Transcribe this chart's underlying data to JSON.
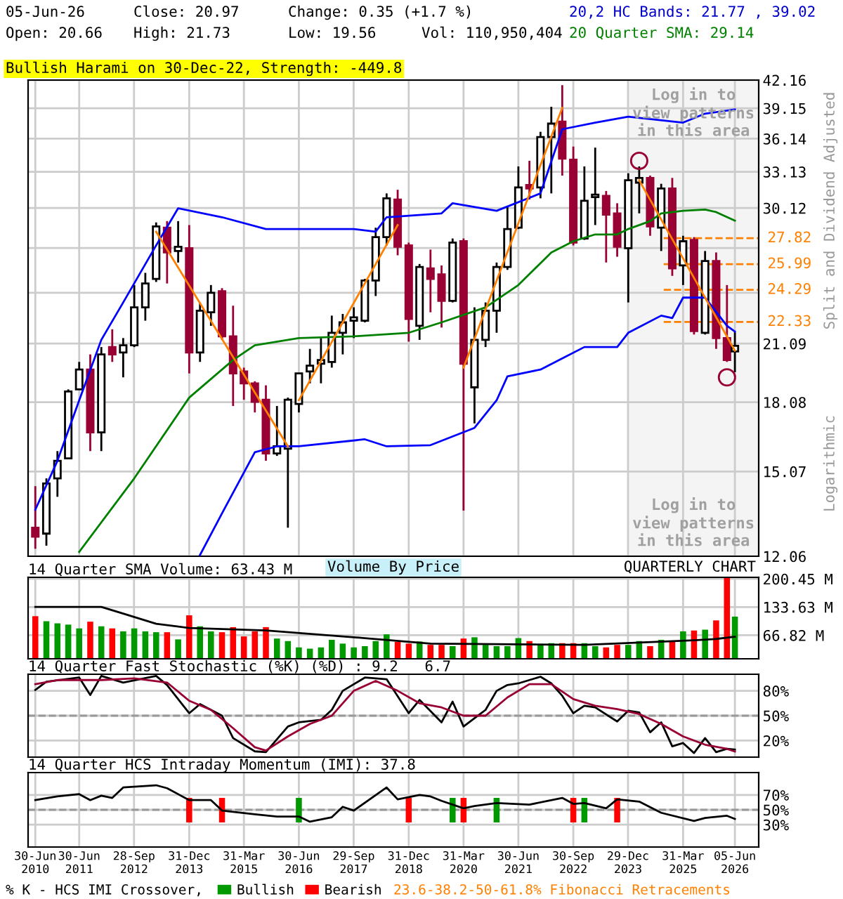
{
  "chart_data": [
    {
      "type": "candlestick",
      "x": [
        "2010-06-30",
        "2010-09-30",
        "2010-12-31",
        "2011-03-31",
        "2011-06-30",
        "2011-09-30",
        "2011-12-31",
        "2012-03-31",
        "2012-06-30",
        "2012-09-30",
        "2012-12-31",
        "2013-03-31",
        "2013-06-30",
        "2013-09-30",
        "2013-12-31",
        "2014-03-31",
        "2014-06-30",
        "2014-09-30",
        "2014-12-31",
        "2015-03-31",
        "2015-06-30",
        "2015-09-30",
        "2015-12-31",
        "2016-03-31",
        "2016-06-30",
        "2016-09-30",
        "2016-12-31",
        "2017-03-31",
        "2017-06-30",
        "2017-09-30",
        "2017-12-31",
        "2018-03-31",
        "2018-06-30",
        "2018-09-30",
        "2018-12-31",
        "2019-03-31",
        "2019-06-30",
        "2019-09-30",
        "2019-12-31",
        "2020-03-31",
        "2020-06-30",
        "2020-09-30",
        "2020-12-31",
        "2021-03-31",
        "2021-06-30",
        "2021-09-30",
        "2021-12-31",
        "2022-03-31",
        "2022-06-30",
        "2022-09-30",
        "2022-12-31",
        "2023-03-31",
        "2023-06-30",
        "2023-09-30",
        "2023-12-31",
        "2024-03-31",
        "2024-06-30",
        "2024-09-30",
        "2024-12-31",
        "2025-03-31",
        "2025-06-30",
        "2025-09-30",
        "2025-12-31",
        "2026-03-31",
        "2026-06-05"
      ],
      "ohlc": [
        [
          13.0,
          14.5,
          12.3,
          12.7
        ],
        [
          12.8,
          14.8,
          12.4,
          14.6
        ],
        [
          14.8,
          15.9,
          14.1,
          15.5
        ],
        [
          15.6,
          18.7,
          15.6,
          18.6
        ],
        [
          18.7,
          20.1,
          18.7,
          19.7
        ],
        [
          19.7,
          20.5,
          15.9,
          16.7
        ],
        [
          16.7,
          20.9,
          15.9,
          20.5
        ],
        [
          20.9,
          21.9,
          20.1,
          20.5
        ],
        [
          20.6,
          21.4,
          19.3,
          21.0
        ],
        [
          21.0,
          24.6,
          20.9,
          23.2
        ],
        [
          23.2,
          25.4,
          22.4,
          24.7
        ],
        [
          25.0,
          29.0,
          24.8,
          28.7
        ],
        [
          28.6,
          29.1,
          24.7,
          26.8
        ],
        [
          26.9,
          29.1,
          26.1,
          27.2
        ],
        [
          27.1,
          28.8,
          19.5,
          20.6
        ],
        [
          20.6,
          23.5,
          20.1,
          23.0
        ],
        [
          22.9,
          24.6,
          22.1,
          24.1
        ],
        [
          24.2,
          24.4,
          21.3,
          21.5
        ],
        [
          21.5,
          23.3,
          17.9,
          19.5
        ],
        [
          19.6,
          19.8,
          18.2,
          19.0
        ],
        [
          19.0,
          19.1,
          17.6,
          18.1
        ],
        [
          18.2,
          18.9,
          15.5,
          15.8
        ],
        [
          15.8,
          17.9,
          15.7,
          16.1
        ],
        [
          16.0,
          18.3,
          13.0,
          18.2
        ],
        [
          18.0,
          19.5,
          17.6,
          19.5
        ],
        [
          19.6,
          20.8,
          19.0,
          19.9
        ],
        [
          20.0,
          21.4,
          19.0,
          20.2
        ],
        [
          20.1,
          22.7,
          19.8,
          21.7
        ],
        [
          21.7,
          22.8,
          20.5,
          22.3
        ],
        [
          22.4,
          23.2,
          21.4,
          22.6
        ],
        [
          22.4,
          25.0,
          22.3,
          24.9
        ],
        [
          24.9,
          28.6,
          23.9,
          27.9
        ],
        [
          27.9,
          31.3,
          27.3,
          30.9
        ],
        [
          30.8,
          31.6,
          26.6,
          27.2
        ],
        [
          27.3,
          27.5,
          21.2,
          22.5
        ],
        [
          22.1,
          26.0,
          21.3,
          25.8
        ],
        [
          25.7,
          27.0,
          22.9,
          25.0
        ],
        [
          25.3,
          25.9,
          22.0,
          23.6
        ],
        [
          23.6,
          27.8,
          23.5,
          27.5
        ],
        [
          27.6,
          27.8,
          13.6,
          20.0
        ],
        [
          18.8,
          23.2,
          17.1,
          21.3
        ],
        [
          21.3,
          23.5,
          20.9,
          23.0
        ],
        [
          23.0,
          26.1,
          21.7,
          25.8
        ],
        [
          25.8,
          30.2,
          25.6,
          28.5
        ],
        [
          28.6,
          33.6,
          28.5,
          31.8
        ],
        [
          32.0,
          34.1,
          30.8,
          31.7
        ],
        [
          31.8,
          36.8,
          30.9,
          36.3
        ],
        [
          36.3,
          39.3,
          31.3,
          37.6
        ],
        [
          37.8,
          41.6,
          32.8,
          34.3
        ],
        [
          34.2,
          35.4,
          27.3,
          27.5
        ],
        [
          27.8,
          33.6,
          27.7,
          30.7
        ],
        [
          31.0,
          35.3,
          28.8,
          31.2
        ],
        [
          31.1,
          31.5,
          26.1,
          29.6
        ],
        [
          29.7,
          30.5,
          26.5,
          27.2
        ],
        [
          27.1,
          33.0,
          23.5,
          32.4
        ],
        [
          32.2,
          33.6,
          29.7,
          32.6
        ],
        [
          32.6,
          32.8,
          28.0,
          28.7
        ],
        [
          28.6,
          32.1,
          26.9,
          31.7
        ],
        [
          31.7,
          32.6,
          25.2,
          25.7
        ],
        [
          25.9,
          28.0,
          24.6,
          27.6
        ],
        [
          27.7,
          27.9,
          21.6,
          21.8
        ],
        [
          21.7,
          26.9,
          21.6,
          26.2
        ],
        [
          26.2,
          26.8,
          20.8,
          21.4
        ],
        [
          21.4,
          24.6,
          20.1,
          20.2
        ],
        [
          20.66,
          21.73,
          19.56,
          20.97
        ]
      ],
      "series": [
        {
          "type": "line",
          "color": "#0000ff",
          "x": [
            "2010-06-30",
            "2010-12-31",
            "2011-06-30",
            "2011-12-31",
            "2012-06-30",
            "2013-03-31",
            "2013-09-30",
            "2014-09-30",
            "2015-09-30",
            "2017-09-30",
            "2018-03-31",
            "2018-06-30",
            "2019-09-30",
            "2019-12-31",
            "2020-12-31",
            "2021-12-31",
            "2022-06-30",
            "2023-03-31",
            "2023-12-31",
            "2025-03-31",
            "2025-09-30",
            "2026-06-05"
          ],
          "values": [
            13.63,
            15.5,
            18.17,
            21.3,
            23.5,
            27.3,
            30.1,
            29.4,
            28.5,
            28.5,
            28.3,
            29.4,
            29.7,
            30.5,
            29.9,
            31.3,
            37.05,
            37.7,
            38.3,
            37.7,
            38.6,
            39.02
          ]
        },
        {
          "type": "line",
          "color": "#0000ff",
          "x": [
            "2014-03-31",
            "2014-09-30",
            "2015-06-30",
            "2015-12-31",
            "2016-06-30",
            "2017-12-31",
            "2018-06-30",
            "2019-06-30",
            "2020-06-30",
            "2020-12-31",
            "2021-03-31",
            "2021-12-31",
            "2022-12-31",
            "2023-09-30",
            "2023-12-31",
            "2024-09-30",
            "2024-12-31",
            "2025-03-31",
            "2025-09-30",
            "2026-03-31",
            "2026-06-05"
          ],
          "values": [
            12.1,
            13.5,
            15.85,
            16.1,
            16.1,
            16.4,
            16.1,
            16.15,
            16.9,
            18.17,
            19.35,
            19.7,
            20.9,
            20.9,
            21.7,
            22.7,
            22.55,
            23.8,
            23.8,
            22.1,
            21.77
          ]
        },
        {
          "type": "line",
          "color": "#008000",
          "x": [
            "2011-06-30",
            "2012-09-30",
            "2013-12-31",
            "2014-12-31",
            "2015-06-30",
            "2016-06-30",
            "2017-09-30",
            "2018-12-31",
            "2019-09-30",
            "2020-09-30",
            "2021-06-30",
            "2022-03-31",
            "2022-09-30",
            "2023-03-31",
            "2023-09-30",
            "2023-12-31",
            "2024-06-30",
            "2024-09-30",
            "2025-03-31",
            "2025-09-30",
            "2025-12-31",
            "2026-06-05"
          ],
          "values": [
            12.2,
            14.8,
            18.3,
            20.2,
            21.0,
            21.4,
            21.5,
            21.7,
            22.3,
            23.2,
            24.6,
            26.8,
            27.6,
            28.1,
            28.1,
            28.5,
            29.1,
            29.7,
            29.9,
            30.0,
            29.8,
            29.14
          ]
        },
        {
          "type": "line",
          "color": "#ff8000",
          "x": [
            "2013-03-31",
            "2016-03-31"
          ],
          "values": [
            28.3,
            16.1
          ]
        },
        {
          "type": "line",
          "color": "#ff8000",
          "x": [
            "2016-06-30",
            "2018-09-30"
          ],
          "values": [
            18.17,
            28.8
          ]
        },
        {
          "type": "line",
          "color": "#ff8000",
          "x": [
            "2020-03-31",
            "2022-06-30"
          ],
          "values": [
            19.8,
            39.2
          ]
        },
        {
          "type": "line",
          "color": "#ff8000",
          "x": [
            "2024-03-31",
            "2026-06-05"
          ],
          "values": [
            32.4,
            20.7
          ]
        },
        {
          "type": "scatter",
          "color": "#990033",
          "marker": "circle",
          "x": [
            "2024-03-31",
            "2026-03-31"
          ],
          "values": [
            34.1,
            19.3
          ]
        }
      ],
      "log": true,
      "xlim": [
        "2010-05-01",
        "2026-12-20"
      ],
      "xticks": [
        {
          "value": "2010-06-30",
          "label": null
        },
        {
          "value": "2011-06-30",
          "label": null
        },
        {
          "value": "2012-09-28",
          "label": null
        },
        {
          "value": "2013-12-31",
          "label": null
        },
        {
          "value": "2015-03-31",
          "label": null
        },
        {
          "value": "2016-06-30",
          "label": null
        },
        {
          "value": "2017-09-29",
          "label": null
        },
        {
          "value": "2018-12-31",
          "label": null
        },
        {
          "value": "2020-03-31",
          "label": null
        },
        {
          "value": "2021-06-30",
          "label": null
        },
        {
          "value": "2022-09-30",
          "label": null
        },
        {
          "value": "2023-12-29",
          "label": null
        },
        {
          "value": "2025-03-31",
          "label": null
        },
        {
          "value": "2026-06-05",
          "label": null
        }
      ],
      "ylim": [
        12.06,
        42.16
      ],
      "yticks": [
        12.06,
        15.07,
        18.08,
        21.09,
        {
          "value": 24.1,
          "label": null
        },
        {
          "value": 27.11,
          "label": null
        },
        30.12,
        33.13,
        36.14,
        39.15,
        42.16
      ],
      "tick_labels": "y",
      "grid": true,
      "ref_lines": [
        {
          "axis": "y",
          "value": 27.82,
          "label": "27.82",
          "color": "#ff8000",
          "line_style": "dashed"
        },
        {
          "axis": "y",
          "value": 25.99,
          "label": "25.99",
          "color": "#ff8000",
          "line_style": "dashed"
        },
        {
          "axis": "y",
          "value": 24.29,
          "label": "24.29",
          "color": "#ff8000",
          "line_style": "dashed"
        },
        {
          "axis": "y",
          "value": 22.33,
          "label": "22.33",
          "color": "#ff8000",
          "line_style": "dashed"
        }
      ],
      "bands": [
        {
          "axis": "x",
          "from": "2023-12-31",
          "to": "2026-12-20",
          "label": "Log in to view patterns in this area",
          "color": "#f4f4f4"
        }
      ],
      "annotations": [
        "05-Jun-26",
        "Close: 20.97",
        "Change: 0.35 (+1.7 %)",
        "20,2 HC Bands: 21.77 , 39.02",
        "Open: 20.66",
        "High: 21.73",
        "Low: 19.56",
        "Vol: 110,950,404",
        "20 Quarter SMA: 29.14",
        "Bullish Harami on 30-Dec-22, Strength: -449.8",
        "Log in to view patterns in this area",
        "Split and Dividend Adjusted",
        "Logarithmic",
        "23.6-38.2-50-61.8% Fibonacci Retracements"
      ]
    },
    {
      "type": "bar",
      "title": "14 Quarter SMA Volume: 63.43 M",
      "x": [
        "2010-06-30",
        "2010-09-30",
        "2010-12-31",
        "2011-03-31",
        "2011-06-30",
        "2011-09-30",
        "2011-12-31",
        "2012-03-31",
        "2012-06-30",
        "2012-09-30",
        "2012-12-31",
        "2013-03-31",
        "2013-06-30",
        "2013-09-30",
        "2013-12-31",
        "2014-03-31",
        "2014-06-30",
        "2014-09-30",
        "2014-12-31",
        "2015-03-31",
        "2015-06-30",
        "2015-09-30",
        "2015-12-31",
        "2016-03-31",
        "2016-06-30",
        "2016-09-30",
        "2016-12-31",
        "2017-03-31",
        "2017-06-30",
        "2017-09-30",
        "2017-12-31",
        "2018-03-31",
        "2018-06-30",
        "2018-09-30",
        "2018-12-31",
        "2019-03-31",
        "2019-06-30",
        "2019-09-30",
        "2019-12-31",
        "2020-03-31",
        "2020-06-30",
        "2020-09-30",
        "2020-12-31",
        "2021-03-31",
        "2021-06-30",
        "2021-09-30",
        "2021-12-31",
        "2022-03-31",
        "2022-06-30",
        "2022-09-30",
        "2022-12-31",
        "2023-03-31",
        "2023-06-30",
        "2023-09-30",
        "2023-12-31",
        "2024-03-31",
        "2024-06-30",
        "2024-09-30",
        "2024-12-31",
        "2025-03-31",
        "2025-06-30",
        "2025-09-30",
        "2025-12-31",
        "2026-03-31",
        "2026-06-05"
      ],
      "values": [
        112,
        100,
        95,
        92,
        83,
        99,
        88,
        83,
        76,
        83,
        76,
        74,
        74,
        57,
        114,
        88,
        76,
        74,
        86,
        64,
        76,
        86,
        59,
        53,
        38,
        35,
        38,
        56,
        47,
        38,
        41,
        53,
        69,
        51,
        47,
        52,
        44,
        44,
        41,
        59,
        62,
        44,
        41,
        41,
        60,
        53,
        44,
        48,
        48,
        48,
        48,
        41,
        38,
        44,
        44,
        53,
        41,
        56,
        53,
        76,
        78,
        80,
        102,
        203,
        110.95
      ],
      "colors": [
        "#ff0000",
        "#009900",
        "#009900",
        "#009900",
        "#009900",
        "#ff0000",
        "#009900",
        "#ff0000",
        "#009900",
        "#009900",
        "#009900",
        "#009900",
        "#ff0000",
        "#009900",
        "#ff0000",
        "#009900",
        "#009900",
        "#ff0000",
        "#ff0000",
        "#ff0000",
        "#ff0000",
        "#ff0000",
        "#009900",
        "#009900",
        "#009900",
        "#009900",
        "#009900",
        "#009900",
        "#009900",
        "#009900",
        "#009900",
        "#009900",
        "#009900",
        "#ff0000",
        "#ff0000",
        "#009900",
        "#ff0000",
        "#ff0000",
        "#009900",
        "#ff0000",
        "#009900",
        "#009900",
        "#009900",
        "#009900",
        "#009900",
        "#ff0000",
        "#009900",
        "#009900",
        "#ff0000",
        "#ff0000",
        "#009900",
        "#009900",
        "#ff0000",
        "#ff0000",
        "#009900",
        "#009900",
        "#ff0000",
        "#009900",
        "#ff0000",
        "#009900",
        "#ff0000",
        "#009900",
        "#ff0000",
        "#ff0000",
        "#009900"
      ],
      "series": [
        {
          "type": "line",
          "color": "#000000",
          "x": [
            "2010-06-30",
            "2011-12-31",
            "2012-06-30",
            "2013-03-31",
            "2013-12-31",
            "2015-09-30",
            "2017-12-31",
            "2019-06-30",
            "2022-12-31",
            "2025-06-30",
            "2025-12-31",
            "2026-06-05"
          ],
          "values": [
            134,
            134,
            118,
            94,
            84,
            78,
            60,
            47,
            44,
            55,
            58,
            63.43
          ]
        }
      ],
      "xlim": [
        "2010-05-01",
        "2026-12-20"
      ],
      "xticks": [
        {
          "value": "2010-06-30",
          "label": null
        },
        {
          "value": "2011-06-30",
          "label": null
        },
        {
          "value": "2012-09-28",
          "label": null
        },
        {
          "value": "2013-12-31",
          "label": null
        },
        {
          "value": "2015-03-31",
          "label": null
        },
        {
          "value": "2016-06-30",
          "label": null
        },
        {
          "value": "2017-09-29",
          "label": null
        },
        {
          "value": "2018-12-31",
          "label": null
        },
        {
          "value": "2020-03-31",
          "label": null
        },
        {
          "value": "2021-06-30",
          "label": null
        },
        {
          "value": "2022-09-30",
          "label": null
        },
        {
          "value": "2023-12-29",
          "label": null
        },
        {
          "value": "2025-03-31",
          "label": null
        },
        {
          "value": "2026-06-05",
          "label": null
        }
      ],
      "ylim": [
        11,
        204
      ],
      "yticks": [
        {
          "value": 66.82,
          "label": "66.82 M"
        },
        {
          "value": 133.63,
          "label": "133.63 M"
        },
        {
          "value": 200.45,
          "label": "200.45 M"
        }
      ],
      "tick_labels": "y",
      "grid": true,
      "annotations": [
        "Volume By Price",
        "QUARTERLY CHART"
      ]
    },
    {
      "type": "line",
      "title": "14 Quarter Fast Stochastic (%K) (%D) : 9.2   6.7",
      "series": [
        {
          "color": "#000000",
          "x": [
            "2010-06-30",
            "2010-09-30",
            "2011-06-30",
            "2011-09-30",
            "2011-12-31",
            "2012-06-30",
            "2013-03-31",
            "2013-06-30",
            "2013-12-31",
            "2014-03-31",
            "2014-09-30",
            "2014-12-31",
            "2015-06-30",
            "2015-09-30",
            "2016-03-31",
            "2016-06-30",
            "2016-12-31",
            "2017-03-31",
            "2017-06-30",
            "2017-12-31",
            "2018-06-30",
            "2018-12-31",
            "2019-03-31",
            "2019-09-30",
            "2019-12-31",
            "2020-03-31",
            "2020-09-30",
            "2020-12-31",
            "2021-03-31",
            "2021-06-30",
            "2021-12-31",
            "2022-03-31",
            "2022-06-30",
            "2022-09-30",
            "2022-12-31",
            "2023-03-31",
            "2023-09-30",
            "2023-12-31",
            "2024-03-31",
            "2024-06-30",
            "2024-09-30",
            "2024-12-31",
            "2025-03-31",
            "2025-06-30",
            "2025-09-30",
            "2025-12-31",
            "2026-03-31",
            "2026-06-05"
          ],
          "values": [
            81,
            91,
            96,
            75,
            98,
            90,
            98,
            87,
            53,
            64,
            50,
            23,
            7,
            6,
            37,
            42,
            45,
            57,
            80,
            96,
            94,
            53,
            69,
            42,
            67,
            37,
            57,
            80,
            87,
            89,
            97,
            89,
            74,
            53,
            62,
            60,
            43,
            56,
            54,
            30,
            42,
            13,
            17,
            5,
            23,
            6,
            10,
            9.2
          ]
        },
        {
          "color": "#990033",
          "x": [
            "2010-06-30",
            "2010-12-31",
            "2011-12-31",
            "2012-09-30",
            "2013-06-30",
            "2013-12-31",
            "2014-06-30",
            "2014-12-31",
            "2015-06-30",
            "2015-09-30",
            "2016-03-31",
            "2016-09-30",
            "2017-03-31",
            "2017-09-30",
            "2018-03-31",
            "2018-09-30",
            "2019-03-31",
            "2019-09-30",
            "2020-03-31",
            "2020-09-30",
            "2021-03-31",
            "2021-09-30",
            "2022-03-31",
            "2022-09-30",
            "2023-03-31",
            "2023-09-30",
            "2024-03-31",
            "2024-09-30",
            "2025-03-31",
            "2025-09-30",
            "2026-03-31",
            "2026-06-05"
          ],
          "values": [
            88,
            93,
            93,
            95,
            90,
            68,
            57,
            35,
            12,
            8,
            25,
            40,
            50,
            80,
            92,
            80,
            65,
            60,
            50,
            50,
            72,
            88,
            88,
            70,
            62,
            58,
            52,
            40,
            25,
            15,
            10,
            6.7
          ]
        }
      ],
      "xlim": [
        "2010-05-01",
        "2026-12-20"
      ],
      "xticks": [
        {
          "value": "2010-06-30",
          "label": null
        },
        {
          "value": "2011-06-30",
          "label": null
        },
        {
          "value": "2012-09-28",
          "label": null
        },
        {
          "value": "2013-12-31",
          "label": null
        },
        {
          "value": "2015-03-31",
          "label": null
        },
        {
          "value": "2016-06-30",
          "label": null
        },
        {
          "value": "2017-09-29",
          "label": null
        },
        {
          "value": "2018-12-31",
          "label": null
        },
        {
          "value": "2020-03-31",
          "label": null
        },
        {
          "value": "2021-06-30",
          "label": null
        },
        {
          "value": "2022-09-30",
          "label": null
        },
        {
          "value": "2023-12-29",
          "label": null
        },
        {
          "value": "2025-03-31",
          "label": null
        },
        {
          "value": "2026-06-05",
          "label": null
        }
      ],
      "ylim": [
        0,
        100
      ],
      "yticks": [
        {
          "value": 20,
          "label": "20%"
        },
        {
          "value": 50,
          "label": "50%"
        },
        {
          "value": 80,
          "label": "80%"
        }
      ],
      "tick_labels": "y",
      "grid": true,
      "ref_lines": [
        {
          "axis": "y",
          "value": 50,
          "color": "#999999",
          "line_style": "dashed"
        }
      ]
    },
    {
      "type": "line",
      "title": "14 Quarter HCS Intraday Momentum (IMI): 37.8",
      "series": [
        {
          "type": "bar",
          "name": "Bullish",
          "color": "#009900",
          "x": [
            "2016-06-30",
            "2019-12-31",
            "2020-12-31",
            "2022-12-31"
          ],
          "base": [
            33,
            33,
            33,
            33
          ],
          "values": [
            33,
            33,
            33,
            33
          ]
        },
        {
          "type": "bar",
          "name": "Bearish",
          "color": "#ff0000",
          "x": [
            "2013-12-31",
            "2014-09-30",
            "2018-12-31",
            "2020-03-31",
            "2022-09-30",
            "2023-09-30"
          ],
          "base": [
            33,
            33,
            33,
            33,
            33,
            33
          ],
          "values": [
            33,
            33,
            33,
            33,
            33,
            33
          ]
        },
        {
          "type": "line",
          "color": "#000000",
          "x": [
            "2010-06-30",
            "2010-12-31",
            "2011-06-30",
            "2011-09-30",
            "2011-12-31",
            "2012-03-31",
            "2012-06-30",
            "2013-03-31",
            "2013-06-30",
            "2013-12-31",
            "2014-06-30",
            "2014-09-30",
            "2015-06-30",
            "2015-12-31",
            "2016-06-30",
            "2016-09-30",
            "2017-03-31",
            "2017-06-30",
            "2017-09-30",
            "2018-06-30",
            "2018-09-30",
            "2019-03-31",
            "2019-06-30",
            "2019-09-30",
            "2020-03-31",
            "2020-06-30",
            "2020-12-31",
            "2021-09-30",
            "2022-06-30",
            "2022-09-30",
            "2022-12-31",
            "2023-06-30",
            "2023-09-30",
            "2024-03-31",
            "2024-09-30",
            "2025-06-30",
            "2025-09-30",
            "2026-03-31",
            "2026-06-05"
          ],
          "values": [
            63,
            68,
            71,
            63,
            69,
            66,
            80,
            83,
            79,
            63,
            63,
            49,
            44,
            41,
            41,
            34,
            40,
            54,
            49,
            80,
            64,
            70,
            68,
            62,
            52,
            55,
            59,
            57,
            66,
            58,
            59,
            52,
            64,
            61,
            46,
            35,
            39,
            42,
            37.8
          ]
        }
      ],
      "xlim": [
        "2010-05-01",
        "2026-12-20"
      ],
      "xticks": [
        {
          "value": "2010-06-30",
          "label": "30-Jun\n2010"
        },
        {
          "value": "2011-06-30",
          "label": "30-Jun\n2011"
        },
        {
          "value": "2012-09-28",
          "label": "28-Sep\n2012"
        },
        {
          "value": "2013-12-31",
          "label": "31-Dec\n2013"
        },
        {
          "value": "2015-03-31",
          "label": "31-Mar\n2015"
        },
        {
          "value": "2016-06-30",
          "label": "30-Jun\n2016"
        },
        {
          "value": "2017-09-29",
          "label": "29-Sep\n2017"
        },
        {
          "value": "2018-12-31",
          "label": "31-Dec\n2018"
        },
        {
          "value": "2020-03-31",
          "label": "31-Mar\n2020"
        },
        {
          "value": "2021-06-30",
          "label": "30-Jun\n2021"
        },
        {
          "value": "2022-09-30",
          "label": "30-Sep\n2022"
        },
        {
          "value": "2023-12-29",
          "label": "29-Dec\n2023"
        },
        {
          "value": "2025-03-31",
          "label": "31-Mar\n2025"
        },
        {
          "value": "2026-06-05",
          "label": "05-Jun\n2026"
        }
      ],
      "ylim": [
        0,
        100
      ],
      "yticks": [
        {
          "value": 30,
          "label": "30%"
        },
        {
          "value": 50,
          "label": "50%"
        },
        {
          "value": 70,
          "label": "70%"
        }
      ],
      "grid": true,
      "legend": "bottom",
      "ref_lines": [
        {
          "axis": "y",
          "value": 50,
          "color": "#999999",
          "line_style": "dashed"
        }
      ],
      "annotations": [
        "% K - HCS IMI Crossover,"
      ]
    }
  ]
}
